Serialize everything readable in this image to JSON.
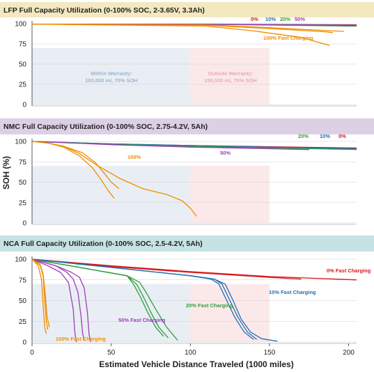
{
  "figure": {
    "ylabel": "SOH (%)",
    "xlabel": "Estimated Vehicle Distance Traveled (1000 miles)",
    "xticks": [
      "0",
      "50",
      "100",
      "150",
      "200"
    ]
  },
  "colors": {
    "0pct": "#d7191c",
    "10pct": "#1f6fb2",
    "20pct": "#2e9e3a",
    "50pct": "#9b3fb5",
    "100pct": "#f08c00",
    "warranty_bg": "#e9eef4",
    "outside_bg": "#fbe9ea",
    "lfp_header": "#f3e8c0",
    "nmc_header": "#ddd0e6",
    "nca_header": "#c6e2e2"
  },
  "chart_data": [
    {
      "type": "line",
      "title": "LFP Full Capacity Utilization (0-100% SOC, 2-3.65V, 3.3Ah)",
      "ylabel": "SOH (%)",
      "xlabel": "Estimated Vehicle Distance Traveled (1000 miles)",
      "xlim": [
        0,
        205
      ],
      "ylim": [
        0,
        100
      ],
      "yticks": [
        0,
        25,
        50,
        75,
        100
      ],
      "regions": [
        {
          "label": "Within Warranty:\n100,000 mi, 70% SOH",
          "x": [
            0,
            100
          ],
          "y": [
            0,
            70
          ]
        },
        {
          "label": "Outside Warranty:\n150,000 mi, 70% SOH",
          "x": [
            100,
            150
          ],
          "y": [
            0,
            70
          ]
        }
      ],
      "legend_labels": [
        "0%",
        "10%",
        "20%",
        "50%"
      ],
      "annotations": [
        "100% Fast Charging"
      ],
      "series": [
        {
          "name": "0%",
          "color_key": "0pct",
          "x": [
            0,
            100,
            205
          ],
          "y": [
            99.5,
            99.5,
            98.5
          ]
        },
        {
          "name": "10%",
          "color_key": "10pct",
          "x": [
            0,
            100,
            205
          ],
          "y": [
            99.5,
            99.5,
            98
          ]
        },
        {
          "name": "20%",
          "color_key": "20pct",
          "x": [
            0,
            100,
            205
          ],
          "y": [
            99.5,
            99.5,
            97
          ]
        },
        {
          "name": "50%",
          "color_key": "50pct",
          "x": [
            0,
            100,
            205
          ],
          "y": [
            99.5,
            99.5,
            97.5
          ]
        },
        {
          "name": "100% Fast Charging",
          "color_key": "100pct",
          "x": [
            0,
            110,
            150,
            185,
            190
          ],
          "y": [
            99.5,
            98,
            94,
            90,
            89
          ]
        },
        {
          "name": "100% Fast Charging",
          "color_key": "100pct",
          "x": [
            0,
            110,
            150,
            190,
            197
          ],
          "y": [
            99.5,
            98.5,
            95,
            91,
            90.5
          ]
        },
        {
          "name": "100% Fast Charging",
          "color_key": "100pct",
          "x": [
            0,
            110,
            140,
            170,
            188
          ],
          "y": [
            99.5,
            97,
            91,
            83,
            73
          ]
        }
      ]
    },
    {
      "type": "line",
      "title": "NMC Full Capacity Utilization (0-100% SOC, 2.75-4.2V, 5Ah)",
      "ylabel": "SOH (%)",
      "xlabel": "Estimated Vehicle Distance Traveled (1000 miles)",
      "xlim": [
        0,
        205
      ],
      "ylim": [
        0,
        100
      ],
      "yticks": [
        0,
        25,
        50,
        75,
        100
      ],
      "regions": [
        {
          "label": "",
          "x": [
            0,
            100
          ],
          "y": [
            0,
            70
          ]
        },
        {
          "label": "",
          "x": [
            100,
            150
          ],
          "y": [
            0,
            70
          ]
        }
      ],
      "legend_labels": [
        "20%",
        "10%",
        "0%"
      ],
      "annotations": [
        "100%",
        "50%"
      ],
      "series": [
        {
          "name": "0%",
          "color_key": "0pct",
          "x": [
            0,
            50,
            100,
            150,
            205
          ],
          "y": [
            100,
            97,
            95,
            93.5,
            92
          ]
        },
        {
          "name": "10%",
          "color_key": "10pct",
          "x": [
            0,
            50,
            100,
            150,
            205
          ],
          "y": [
            100,
            97,
            95,
            93,
            91
          ]
        },
        {
          "name": "20%",
          "color_key": "20pct",
          "x": [
            0,
            50,
            100,
            150,
            205
          ],
          "y": [
            100,
            96.5,
            94,
            92,
            90
          ]
        },
        {
          "name": "50%",
          "color_key": "50pct",
          "x": [
            0,
            50,
            100,
            150,
            175
          ],
          "y": [
            100,
            96,
            93,
            91,
            90
          ]
        },
        {
          "name": "100%",
          "color_key": "100pct",
          "x": [
            0,
            10,
            20,
            30,
            38,
            44,
            48,
            52
          ],
          "y": [
            100,
            98,
            93,
            82,
            68,
            52,
            40,
            30
          ]
        },
        {
          "name": "100%",
          "color_key": "100pct",
          "x": [
            0,
            10,
            20,
            32,
            40,
            46,
            50,
            55
          ],
          "y": [
            100,
            98,
            94,
            86,
            74,
            60,
            50,
            42
          ]
        },
        {
          "name": "100%",
          "color_key": "100pct",
          "x": [
            0,
            10,
            20,
            30,
            40,
            55,
            70,
            85,
            95,
            100,
            104
          ],
          "y": [
            100,
            98,
            94,
            85,
            72,
            55,
            42,
            35,
            27,
            18,
            8
          ]
        }
      ]
    },
    {
      "type": "line",
      "title": "NCA Full Capacity Utilization (0-100% SOC, 2.5-4.2V, 5Ah)",
      "ylabel": "SOH (%)",
      "xlabel": "Estimated Vehicle Distance Traveled (1000 miles)",
      "xlim": [
        0,
        205
      ],
      "ylim": [
        0,
        100
      ],
      "yticks": [
        0,
        25,
        50,
        75,
        100
      ],
      "regions": [
        {
          "label": "",
          "x": [
            0,
            100
          ],
          "y": [
            0,
            70
          ]
        },
        {
          "label": "",
          "x": [
            100,
            150
          ],
          "y": [
            0,
            70
          ]
        }
      ],
      "annotations": [
        "0% Fast Charging",
        "10% Fast Charging",
        "20% Fast Charging",
        "50% Fast Charging",
        "100% Fast Charging"
      ],
      "series": [
        {
          "name": "0% Fast Charging",
          "color_key": "0pct",
          "x": [
            0,
            50,
            100,
            150,
            205
          ],
          "y": [
            100,
            92,
            85,
            79,
            75
          ]
        },
        {
          "name": "0% Fast Charging",
          "color_key": "0pct",
          "x": [
            0,
            50,
            100,
            150,
            170
          ],
          "y": [
            100,
            91,
            84,
            78,
            76
          ]
        },
        {
          "name": "10% Fast Charging",
          "color_key": "10pct",
          "x": [
            0,
            50,
            100,
            115,
            122,
            127,
            132,
            138,
            145,
            155
          ],
          "y": [
            100,
            90,
            80,
            76,
            70,
            50,
            28,
            12,
            4,
            1
          ]
        },
        {
          "name": "10% Fast Charging",
          "color_key": "10pct",
          "x": [
            0,
            50,
            100,
            115,
            120,
            125,
            130,
            136,
            142
          ],
          "y": [
            100,
            90,
            80,
            76,
            70,
            50,
            30,
            12,
            3
          ]
        },
        {
          "name": "10% Fast Charging",
          "color_key": "10pct",
          "x": [
            0,
            50,
            100,
            113,
            118,
            123,
            128,
            134,
            140
          ],
          "y": [
            100,
            90,
            80,
            76,
            70,
            50,
            30,
            12,
            3
          ]
        },
        {
          "name": "20% Fast Charging",
          "color_key": "20pct",
          "x": [
            0,
            30,
            60,
            68,
            72,
            78,
            85,
            92
          ],
          "y": [
            100,
            90,
            80,
            72,
            60,
            40,
            18,
            2
          ]
        },
        {
          "name": "20% Fast Charging",
          "color_key": "20pct",
          "x": [
            0,
            30,
            60,
            66,
            70,
            75,
            80,
            86
          ],
          "y": [
            100,
            90,
            80,
            70,
            56,
            36,
            18,
            5
          ]
        },
        {
          "name": "20% Fast Charging",
          "color_key": "20pct",
          "x": [
            0,
            30,
            60,
            64,
            68,
            73,
            78,
            83
          ],
          "y": [
            100,
            90,
            80,
            70,
            56,
            36,
            18,
            7
          ]
        },
        {
          "name": "50% Fast Charging",
          "color_key": "50pct",
          "x": [
            0,
            15,
            25,
            30,
            33,
            35,
            36,
            37
          ],
          "y": [
            100,
            92,
            84,
            78,
            65,
            35,
            10,
            0
          ]
        },
        {
          "name": "50% Fast Charging",
          "color_key": "50pct",
          "x": [
            0,
            15,
            22,
            26,
            29,
            31,
            32,
            33
          ],
          "y": [
            100,
            92,
            84,
            76,
            60,
            30,
            10,
            2
          ]
        },
        {
          "name": "50% Fast Charging",
          "color_key": "50pct",
          "x": [
            0,
            10,
            18,
            23,
            26,
            27,
            28
          ],
          "y": [
            100,
            92,
            84,
            72,
            40,
            12,
            0
          ]
        },
        {
          "name": "100% Fast Charging",
          "color_key": "100pct",
          "x": [
            0,
            4,
            6,
            7,
            8,
            9
          ],
          "y": [
            100,
            92,
            75,
            45,
            18,
            10
          ]
        },
        {
          "name": "100% Fast Charging",
          "color_key": "100pct",
          "x": [
            0,
            5,
            7,
            8,
            9,
            10
          ],
          "y": [
            100,
            93,
            80,
            50,
            25,
            15
          ]
        },
        {
          "name": "100% Fast Charging",
          "color_key": "100pct",
          "x": [
            0,
            5,
            7,
            8.5,
            9.5,
            11
          ],
          "y": [
            100,
            94,
            82,
            55,
            30,
            18
          ]
        }
      ]
    }
  ]
}
